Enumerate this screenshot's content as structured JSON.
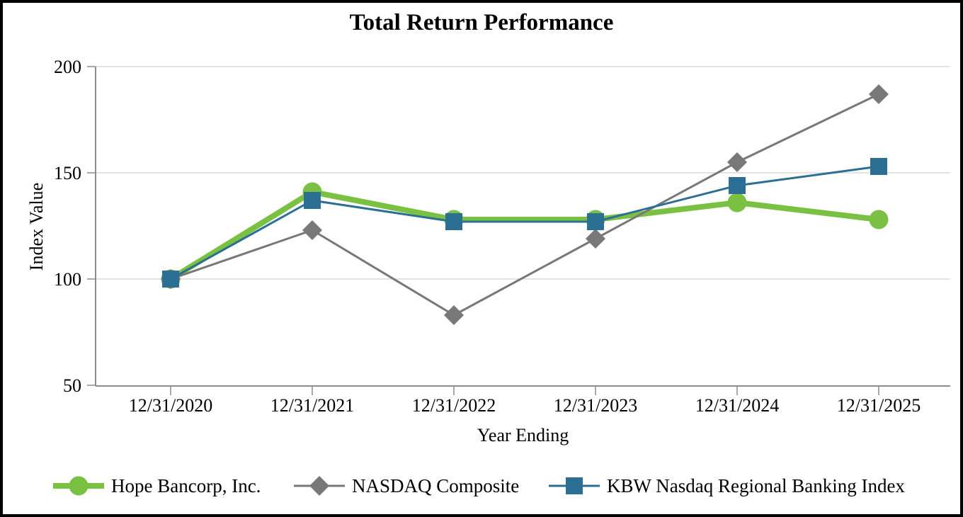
{
  "title": "Total Return Performance",
  "chart_data": {
    "type": "line",
    "x_categories": [
      "12/31/2020",
      "12/31/2021",
      "12/31/2022",
      "12/31/2023",
      "12/31/2024",
      "12/31/2025"
    ],
    "series": [
      {
        "name": "Hope Bancorp, Inc.",
        "marker": "circle",
        "color": "#7AC143",
        "line_width": 8,
        "values": [
          100,
          141,
          128,
          128,
          136,
          128
        ]
      },
      {
        "name": "NASDAQ Composite",
        "marker": "diamond",
        "color": "#787878",
        "line_width": 3,
        "values": [
          100,
          123,
          83,
          119,
          155,
          187
        ]
      },
      {
        "name": "KBW Nasdaq Regional Banking Index",
        "marker": "square",
        "color": "#2B6F94",
        "line_width": 3,
        "values": [
          100,
          137,
          127,
          127,
          144,
          153
        ]
      }
    ],
    "xlabel": "Year Ending",
    "ylabel": "Index Value",
    "ylim": [
      50,
      200
    ],
    "yticks": [
      50,
      100,
      150,
      200
    ],
    "grid": true,
    "legend_position": "bottom"
  },
  "colors": {
    "grid": "#DCDCDC",
    "axis": "#8C8C8C",
    "text": "#000000",
    "background": "#FFFFFF",
    "frame_border": "#000000"
  }
}
